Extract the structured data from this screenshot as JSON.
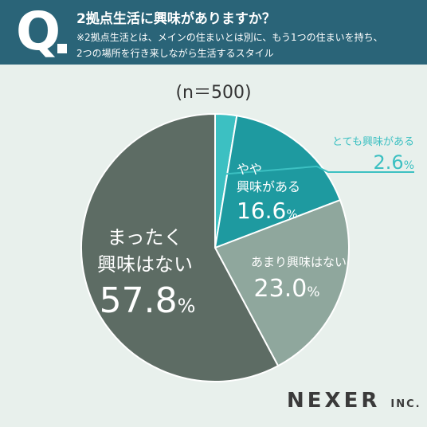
{
  "header": {
    "q_mark": "Q",
    "title": "2拠点生活に興味がありますか？",
    "note_line1": "※2拠点生活とは、メインの住まいとは別に、もう1つの住まいを持ち、",
    "note_line2": "2つの場所を行き来しながら生活するスタイル"
  },
  "sample_label": "(n＝500)",
  "logo": {
    "main": "NEXER",
    "suffix": "INC."
  },
  "colors": {
    "header_bg": "#2a6478",
    "background": "#e8f0ec"
  },
  "chart_data": {
    "type": "pie",
    "start_angle_deg": 0,
    "direction": "clockwise",
    "unit": "%",
    "slices": [
      {
        "label": "とても興味がある",
        "value": 2.6,
        "value_text": "2.6",
        "color": "#3cc0c2"
      },
      {
        "label": "やや興味がある",
        "value": 16.6,
        "value_text": "16.6",
        "color": "#1e9aa0"
      },
      {
        "label": "あまり興味はない",
        "value": 23.0,
        "value_text": "23.0",
        "color": "#8fa79d"
      },
      {
        "label": "まったく興味はない",
        "value": 57.8,
        "value_text": "57.8",
        "color": "#5d6c64"
      }
    ]
  }
}
